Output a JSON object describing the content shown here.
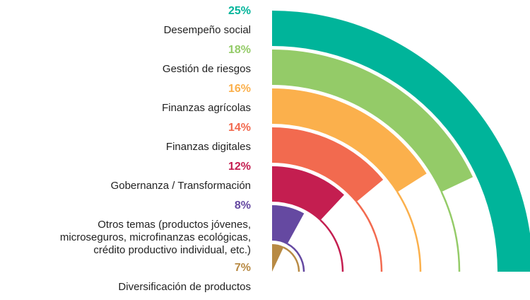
{
  "chart_data": {
    "type": "radial_bar",
    "categories": [
      "Desempeño social",
      "Gestión de riesgos",
      "Finanzas agrícolas",
      "Finanzas digitales",
      "Gobernanza / Transformación",
      "Otros temas (productos jóvenes,\nmicroseguros, microfinanzas ecológicas,\ncrédito productivo individual, etc.)",
      "Diversificación de productos"
    ],
    "values": [
      25,
      18,
      16,
      14,
      12,
      8,
      7
    ],
    "value_labels": [
      "25%",
      "18%",
      "16%",
      "14%",
      "12%",
      "8%",
      "7%"
    ],
    "colors": [
      "#00b49a",
      "#94cb68",
      "#fbb04c",
      "#f26a4f",
      "#c41e50",
      "#6549a1",
      "#b88a44"
    ]
  }
}
